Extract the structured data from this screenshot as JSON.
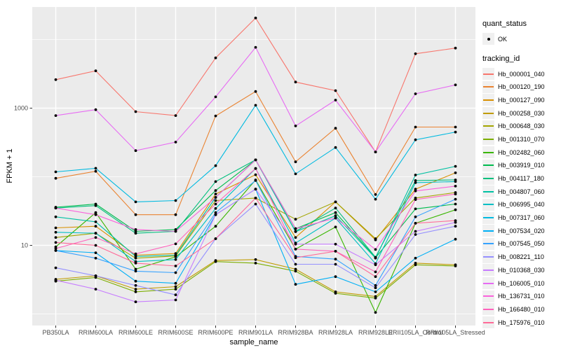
{
  "colors": {
    "panel_bg": "#EBEBEB",
    "grid": "#FFFFFF",
    "tick": "#333333",
    "tick_label": "#4D4D4D",
    "point": "#000000",
    "legend_key_bg": "#F0F0F0"
  },
  "legend": {
    "quant_status": {
      "title": "quant_status",
      "items": [
        {
          "label": "OK",
          "symbol": "point"
        }
      ]
    },
    "tracking_id": {
      "title": "tracking_id"
    }
  },
  "y_axis": {
    "label": "FPKM + 1",
    "tick_labels": [
      "1000",
      "10"
    ]
  },
  "x_axis": {
    "label": "sample_name"
  },
  "chart_data": {
    "type": "line",
    "x_type": "categorical",
    "title": "",
    "xlabel": "sample_name",
    "ylabel": "FPKM + 1",
    "y_scale": "log10",
    "y_major_ticks": [
      10,
      1000
    ],
    "y_minor_gridlines": [
      1,
      100,
      10000
    ],
    "ylim": [
      0.7,
      30000
    ],
    "grid": true,
    "legend_position": "right",
    "marker": "black point on every vertex (quant_status = OK)",
    "categories": [
      "PB350LA",
      "RRIM600LA",
      "RRIM600LE",
      "RRIM600SE",
      "RRIM600PE",
      "RRIM901LA",
      "RRIM928BA",
      "RRIM928LA",
      "RRIM928LE",
      "RRII105LA_Control",
      "RRII105LA_Stressed"
    ],
    "series": [
      {
        "name": "Hb_000001_040",
        "color": "#F8766D",
        "values": [
          2600,
          3500,
          890,
          780,
          5400,
          20600,
          2400,
          1800,
          230,
          6200,
          7500
        ]
      },
      {
        "name": "Hb_000120_190",
        "color": "#EA8331",
        "values": [
          95,
          120,
          28,
          28,
          770,
          1750,
          165,
          510,
          55,
          530,
          530
        ]
      },
      {
        "name": "Hb_000127_090",
        "color": "#D89000",
        "values": [
          18,
          19,
          7.2,
          7.6,
          56,
          107,
          13,
          43,
          12,
          66,
          114
        ]
      },
      {
        "name": "Hb_000258_030",
        "color": "#C09B00",
        "values": [
          3.2,
          3.6,
          2.3,
          2.5,
          6.0,
          6.2,
          4.5,
          2.1,
          1.8,
          5.5,
          5.2
        ]
      },
      {
        "name": "Hb_000648_030",
        "color": "#A3A500",
        "values": [
          13,
          15,
          6.5,
          7.0,
          45,
          49,
          24,
          43,
          12.5,
          49,
          59
        ]
      },
      {
        "name": "Hb_001310_070",
        "color": "#7CAE00",
        "values": [
          3.0,
          3.4,
          2.1,
          2.3,
          5.8,
          5.5,
          4.2,
          2.0,
          1.7,
          5.2,
          5.0
        ]
      },
      {
        "name": "Hb_002482_060",
        "color": "#39B600",
        "values": [
          9.5,
          30,
          4.5,
          6.8,
          19,
          90,
          8.8,
          18.5,
          1.05,
          21,
          33
        ]
      },
      {
        "name": "Hb_003919_010",
        "color": "#00BB4E",
        "values": [
          36,
          40,
          16,
          17,
          63,
          176,
          17.5,
          30,
          6.6,
          34,
          40
        ]
      },
      {
        "name": "Hb_004117_180",
        "color": "#00BF7D",
        "values": [
          35,
          38,
          15,
          16,
          85,
          176,
          16,
          35,
          6.7,
          88,
          90
        ]
      },
      {
        "name": "Hb_004807_060",
        "color": "#00C1A3",
        "values": [
          26,
          22,
          6.9,
          7.2,
          50,
          176,
          15.8,
          27,
          6.5,
          106,
          142
        ]
      },
      {
        "name": "Hb_006995_040",
        "color": "#00BFC4",
        "values": [
          15.5,
          15,
          5.8,
          6.2,
          34.5,
          132,
          10.8,
          25,
          5.4,
          82,
          85
        ]
      },
      {
        "name": "Hb_007317_060",
        "color": "#00BAE0",
        "values": [
          118,
          133,
          43,
          45,
          145,
          1100,
          110,
          267,
          47,
          346,
          448
        ]
      },
      {
        "name": "Hb_007534_020",
        "color": "#00B0F6",
        "values": [
          8.4,
          7.8,
          3.0,
          2.8,
          28,
          66,
          2.7,
          3.5,
          2.1,
          6.5,
          12.3
        ]
      },
      {
        "name": "Hb_007545_050",
        "color": "#35A2FF",
        "values": [
          8.4,
          6.5,
          4.2,
          4.0,
          30,
          88,
          6.9,
          6.3,
          2.6,
          26,
          47
        ]
      },
      {
        "name": "Hb_008221_110",
        "color": "#9590FF",
        "values": [
          4.7,
          3.6,
          2.6,
          1.9,
          12.5,
          40,
          5.3,
          5.3,
          2.4,
          14.4,
          19
        ]
      },
      {
        "name": "Hb_010368_030",
        "color": "#C77CFF",
        "values": [
          3.1,
          2.3,
          1.5,
          1.6,
          28,
          66,
          10.4,
          10.4,
          5.2,
          16,
          21.6
        ]
      },
      {
        "name": "Hb_106005_010",
        "color": "#E76BF3",
        "values": [
          780,
          950,
          240,
          320,
          1460,
          7700,
          550,
          1310,
          230,
          1620,
          2180
        ]
      },
      {
        "name": "Hb_136731_010",
        "color": "#FA62DB",
        "values": [
          35,
          28,
          17,
          16,
          50,
          176,
          17.5,
          25,
          8.7,
          62,
          73
        ]
      },
      {
        "name": "Hb_166480_010",
        "color": "#FF62BC",
        "values": [
          9.0,
          13,
          7.5,
          10.5,
          40,
          132,
          8.8,
          8.2,
          4.1,
          46.5,
          56
        ]
      },
      {
        "name": "Hb_175976_010",
        "color": "#FF6A98",
        "values": [
          11,
          10,
          5.5,
          5.0,
          12.5,
          49,
          6.6,
          8.2,
          3.5,
          21,
          23
        ]
      }
    ]
  }
}
